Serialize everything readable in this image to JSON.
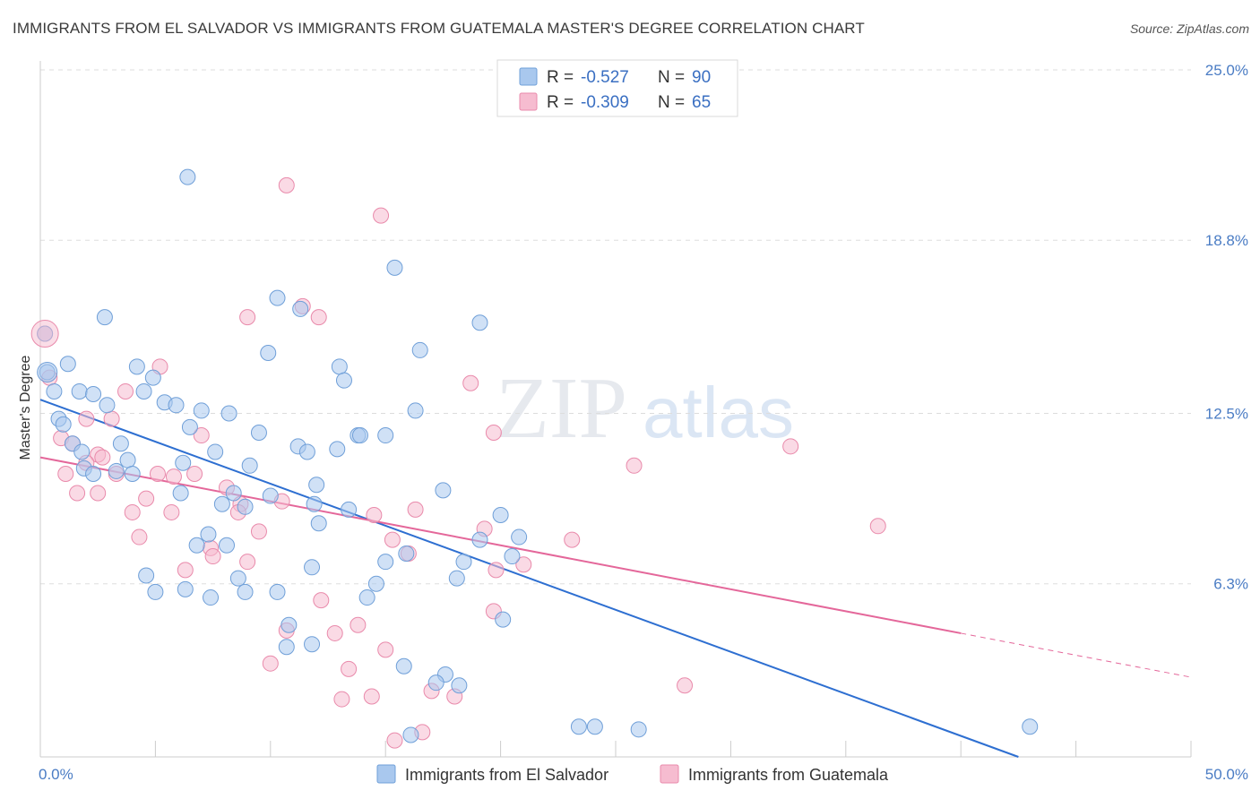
{
  "title": "IMMIGRANTS FROM EL SALVADOR VS IMMIGRANTS FROM GUATEMALA MASTER'S DEGREE CORRELATION CHART",
  "source": "Source: ZipAtlas.com",
  "watermark": {
    "zip": "ZIP",
    "atlas": "atlas"
  },
  "colors": {
    "blue_fill": "#a9c8ee",
    "blue_stroke": "#6f9fd8",
    "blue_line": "#2e6fd1",
    "pink_fill": "#f6bcd0",
    "pink_stroke": "#e98aab",
    "pink_line": "#e4679a",
    "tick_label": "#4a7cc4",
    "grid": "#dddddd"
  },
  "legend": {
    "rows": [
      {
        "r_label": "R = ",
        "r_value": "-0.527",
        "n_label": "N = ",
        "n_value": "90"
      },
      {
        "r_label": "R = ",
        "r_value": "-0.309",
        "n_label": "N = ",
        "n_value": "65"
      }
    ]
  },
  "chart_data": {
    "type": "scatter",
    "title": "IMMIGRANTS FROM EL SALVADOR VS IMMIGRANTS FROM GUATEMALA MASTER'S DEGREE CORRELATION CHART",
    "xlabel": "",
    "ylabel": "Master's Degree",
    "xlim": [
      0,
      50
    ],
    "ylim": [
      0,
      25.0
    ],
    "x_tick_labels": [
      "0.0%",
      "50.0%"
    ],
    "y_ticks": [
      6.3,
      12.5,
      18.8,
      25.0
    ],
    "y_tick_labels": [
      "6.3%",
      "12.5%",
      "18.8%",
      "25.0%"
    ],
    "grid": true,
    "legend_position": "top-center",
    "series": [
      {
        "name": "Immigrants from El Salvador",
        "color": "#a9c8ee",
        "trend": {
          "x0": 0,
          "y0": 13.0,
          "x1": 42.5,
          "y1": 0
        },
        "points": [
          [
            6.4,
            21.1
          ],
          [
            15.4,
            17.8
          ],
          [
            10.3,
            16.7
          ],
          [
            11.3,
            16.3
          ],
          [
            2.8,
            16.0
          ],
          [
            19.1,
            15.8
          ],
          [
            0.2,
            15.4
          ],
          [
            16.5,
            14.8
          ],
          [
            9.9,
            14.7
          ],
          [
            1.2,
            14.3
          ],
          [
            4.2,
            14.2
          ],
          [
            13.0,
            14.2
          ],
          [
            0.3,
            14.0
          ],
          [
            4.9,
            13.8
          ],
          [
            13.2,
            13.7
          ],
          [
            0.6,
            13.3
          ],
          [
            1.7,
            13.3
          ],
          [
            2.3,
            13.2
          ],
          [
            4.5,
            13.3
          ],
          [
            5.4,
            12.9
          ],
          [
            5.9,
            12.8
          ],
          [
            2.9,
            12.8
          ],
          [
            7.0,
            12.6
          ],
          [
            8.2,
            12.5
          ],
          [
            16.3,
            12.6
          ],
          [
            0.8,
            12.3
          ],
          [
            1.0,
            12.1
          ],
          [
            6.5,
            12.0
          ],
          [
            9.5,
            11.8
          ],
          [
            13.8,
            11.7
          ],
          [
            13.9,
            11.7
          ],
          [
            15.0,
            11.7
          ],
          [
            1.4,
            11.4
          ],
          [
            3.5,
            11.4
          ],
          [
            11.2,
            11.3
          ],
          [
            11.6,
            11.1
          ],
          [
            7.6,
            11.1
          ],
          [
            1.8,
            11.1
          ],
          [
            12.9,
            11.2
          ],
          [
            6.2,
            10.7
          ],
          [
            3.8,
            10.8
          ],
          [
            9.1,
            10.6
          ],
          [
            1.9,
            10.5
          ],
          [
            2.3,
            10.3
          ],
          [
            3.3,
            10.4
          ],
          [
            4.0,
            10.3
          ],
          [
            12.0,
            9.9
          ],
          [
            8.4,
            9.6
          ],
          [
            6.1,
            9.6
          ],
          [
            17.5,
            9.7
          ],
          [
            10.0,
            9.5
          ],
          [
            7.9,
            9.2
          ],
          [
            8.9,
            9.1
          ],
          [
            11.9,
            9.2
          ],
          [
            13.4,
            9.0
          ],
          [
            20.0,
            8.8
          ],
          [
            12.1,
            8.5
          ],
          [
            7.3,
            8.1
          ],
          [
            8.1,
            7.7
          ],
          [
            6.8,
            7.7
          ],
          [
            20.8,
            8.0
          ],
          [
            19.1,
            7.9
          ],
          [
            15.9,
            7.4
          ],
          [
            18.4,
            7.1
          ],
          [
            15.0,
            7.1
          ],
          [
            11.8,
            6.9
          ],
          [
            20.5,
            7.3
          ],
          [
            4.6,
            6.6
          ],
          [
            8.6,
            6.5
          ],
          [
            18.1,
            6.5
          ],
          [
            14.6,
            6.3
          ],
          [
            6.3,
            6.1
          ],
          [
            5.0,
            6.0
          ],
          [
            8.9,
            6.0
          ],
          [
            10.3,
            6.0
          ],
          [
            7.4,
            5.8
          ],
          [
            14.2,
            5.8
          ],
          [
            20.1,
            5.0
          ],
          [
            10.8,
            4.8
          ],
          [
            11.8,
            4.1
          ],
          [
            10.7,
            4.0
          ],
          [
            15.8,
            3.3
          ],
          [
            17.6,
            3.0
          ],
          [
            17.2,
            2.7
          ],
          [
            18.2,
            2.6
          ],
          [
            23.4,
            1.1
          ],
          [
            24.1,
            1.1
          ],
          [
            26.0,
            1.0
          ],
          [
            16.1,
            0.8
          ],
          [
            43.0,
            1.1
          ]
        ]
      },
      {
        "name": "Immigrants from Guatemala",
        "color": "#f6bcd0",
        "trend": {
          "x0": 0,
          "y0": 10.9,
          "x1": 40.0,
          "y1": 4.5,
          "dashed_x1": 50.0,
          "dashed_y1": 2.9
        },
        "points": [
          [
            10.7,
            20.8
          ],
          [
            14.8,
            19.7
          ],
          [
            11.4,
            16.4
          ],
          [
            12.1,
            16.0
          ],
          [
            9.0,
            16.0
          ],
          [
            0.2,
            15.4
          ],
          [
            5.2,
            14.2
          ],
          [
            0.4,
            13.8
          ],
          [
            18.7,
            13.6
          ],
          [
            3.7,
            13.3
          ],
          [
            2.0,
            12.3
          ],
          [
            3.1,
            12.3
          ],
          [
            0.9,
            11.6
          ],
          [
            7.0,
            11.7
          ],
          [
            19.7,
            11.8
          ],
          [
            1.4,
            11.4
          ],
          [
            32.6,
            11.3
          ],
          [
            2.5,
            11.0
          ],
          [
            2.7,
            10.9
          ],
          [
            2.0,
            10.7
          ],
          [
            3.3,
            10.3
          ],
          [
            5.1,
            10.3
          ],
          [
            5.8,
            10.2
          ],
          [
            6.7,
            10.3
          ],
          [
            25.8,
            10.6
          ],
          [
            1.1,
            10.3
          ],
          [
            8.1,
            9.8
          ],
          [
            2.5,
            9.6
          ],
          [
            1.6,
            9.6
          ],
          [
            4.6,
            9.4
          ],
          [
            10.5,
            9.3
          ],
          [
            8.7,
            9.2
          ],
          [
            4.0,
            8.9
          ],
          [
            5.7,
            8.9
          ],
          [
            8.6,
            8.9
          ],
          [
            16.3,
            9.0
          ],
          [
            14.5,
            8.8
          ],
          [
            9.5,
            8.2
          ],
          [
            19.3,
            8.3
          ],
          [
            36.4,
            8.4
          ],
          [
            4.3,
            8.0
          ],
          [
            15.3,
            7.9
          ],
          [
            23.1,
            7.9
          ],
          [
            7.4,
            7.6
          ],
          [
            7.5,
            7.3
          ],
          [
            16.0,
            7.4
          ],
          [
            9.0,
            7.1
          ],
          [
            21.0,
            7.0
          ],
          [
            6.3,
            6.8
          ],
          [
            19.8,
            6.8
          ],
          [
            12.2,
            5.7
          ],
          [
            19.7,
            5.3
          ],
          [
            10.7,
            4.6
          ],
          [
            12.8,
            4.5
          ],
          [
            13.8,
            4.8
          ],
          [
            15.0,
            3.9
          ],
          [
            10.0,
            3.4
          ],
          [
            13.4,
            3.2
          ],
          [
            28.0,
            2.6
          ],
          [
            17.0,
            2.4
          ],
          [
            14.4,
            2.2
          ],
          [
            18.0,
            2.2
          ],
          [
            13.1,
            2.1
          ],
          [
            16.6,
            0.9
          ],
          [
            15.4,
            0.6
          ]
        ]
      }
    ]
  }
}
